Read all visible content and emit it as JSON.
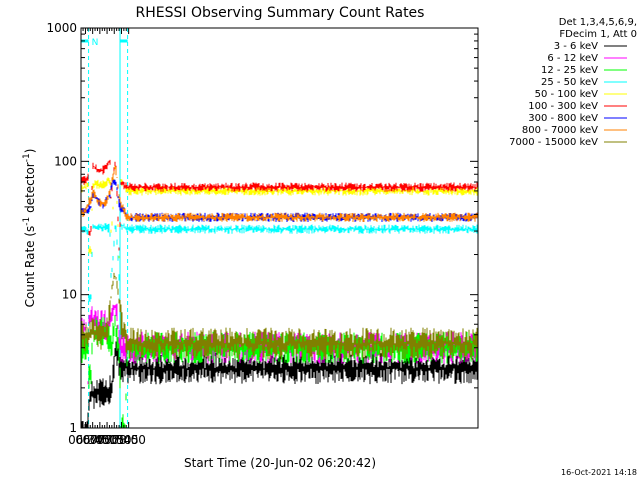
{
  "chart_data": {
    "type": "line",
    "title": "RHESSI Observing Summary Count Rates",
    "xlabel": "Start Time (20-Jun-02 06:20:42)",
    "ylabel_main": "Count Rate (s",
    "ylabel_sup1": "-1",
    "ylabel_mid": " detector",
    "ylabel_sup2": "-1",
    "ylabel_end": ")",
    "y_scale": "log",
    "ylim": [
      1,
      1000
    ],
    "xlim_min": [
      380.7,
      1208
    ],
    "x_unit": "minutes after 00:00",
    "x_ticks": [
      {
        "v": 390,
        "label": "06:30"
      },
      {
        "v": 405,
        "label": "06:45"
      },
      {
        "v": 420,
        "label": "07:00"
      },
      {
        "v": 435,
        "label": "07:15"
      },
      {
        "v": 450,
        "label": "07:30"
      },
      {
        "v": 465,
        "label": "07:45"
      },
      {
        "v": 480,
        "label": "08:00"
      }
    ],
    "y_ticks": [
      {
        "v": 1,
        "label": "1"
      },
      {
        "v": 10,
        "label": "10"
      },
      {
        "v": 100,
        "label": "100"
      },
      {
        "v": 1000,
        "label": "1000"
      }
    ],
    "legend_header": [
      "Det 1,3,4,5,6,9,",
      "FDecim 1, Att 0"
    ],
    "legend_placement": "right",
    "night_marker_label": "N",
    "night_intervals": [
      [
        380.7,
        396.5
      ],
      [
        462.0,
        477.8
      ]
    ],
    "eclipse_solid_edges": [
      380.7,
      462.0
    ],
    "eclipse_dashed_edges": [
      396.5,
      477.8
    ],
    "timestamp": "16-Oct-2021 14:18",
    "series": [
      {
        "name": "3 - 6 keV",
        "color": "#000000",
        "points": [
          [
            397,
            1
          ],
          [
            397.5,
            1.8
          ],
          [
            403,
            1.8
          ],
          [
            410,
            1.8
          ],
          [
            420,
            1.8
          ],
          [
            430,
            1.8
          ],
          [
            438,
            1.8
          ],
          [
            444,
            2.0
          ],
          [
            447,
            2.5
          ],
          [
            449,
            3.0
          ],
          [
            452,
            3.5
          ],
          [
            456,
            3.5
          ],
          [
            459,
            3.2
          ],
          [
            462,
            2.8
          ]
        ]
      },
      {
        "name": "6 - 12 keV",
        "color": "#ff00ff",
        "points": [
          [
            380.7,
            5.5
          ],
          [
            387,
            5.5
          ],
          [
            392,
            5.5
          ],
          [
            395,
            6.0
          ],
          [
            395.5,
            1
          ],
          [
            397,
            6.5
          ],
          [
            405,
            6.3
          ],
          [
            415,
            6.3
          ],
          [
            425,
            6.0
          ],
          [
            432,
            5.8
          ],
          [
            437,
            6.0
          ],
          [
            441,
            6.8
          ],
          [
            445,
            7.5
          ],
          [
            449,
            8.2
          ],
          [
            452,
            8.0
          ],
          [
            456,
            6.8
          ],
          [
            459,
            5.2
          ],
          [
            462,
            4.0
          ]
        ]
      },
      {
        "name": "12 - 25 keV",
        "color": "#00ff00",
        "points": [
          [
            380.7,
            4.0
          ],
          [
            390,
            4.0
          ],
          [
            395.5,
            4.0
          ],
          [
            396.5,
            2.6
          ],
          [
            403,
            2.6
          ],
          [
            404,
            5.8
          ],
          [
            412,
            5.2
          ],
          [
            420,
            5.2
          ],
          [
            428,
            5.2
          ],
          [
            434,
            5.0
          ],
          [
            438,
            4.8
          ],
          [
            441,
            4.6
          ],
          [
            442,
            3.8
          ],
          [
            446,
            4.2
          ],
          [
            449,
            5.5
          ],
          [
            451,
            6.5
          ],
          [
            454,
            5.5
          ],
          [
            457,
            4.5
          ],
          [
            460,
            3.5
          ],
          [
            462,
            2.5
          ],
          [
            463,
            1
          ],
          [
            474,
            1
          ],
          [
            475,
            3.5
          ],
          [
            477.8,
            4.0
          ]
        ]
      },
      {
        "name": "25 - 50 keV",
        "color": "#00ffff",
        "points": [
          [
            380.7,
            32
          ],
          [
            386,
            31
          ],
          [
            390,
            30
          ],
          [
            395.5,
            30
          ],
          [
            396.5,
            9.5
          ],
          [
            403,
            9.5
          ],
          [
            404,
            33
          ],
          [
            410,
            32
          ],
          [
            420,
            32
          ],
          [
            430,
            32
          ],
          [
            438,
            31.5
          ],
          [
            441,
            31.5
          ],
          [
            442,
            13
          ],
          [
            446,
            16
          ],
          [
            449,
            22
          ],
          [
            451,
            30
          ],
          [
            452,
            34
          ],
          [
            454,
            31
          ],
          [
            457,
            21
          ],
          [
            459,
            15
          ],
          [
            460.5,
            12
          ],
          [
            462,
            11
          ],
          [
            463,
            33
          ],
          [
            468,
            33
          ],
          [
            474,
            31
          ],
          [
            477.8,
            31
          ]
        ]
      },
      {
        "name": "50 - 100 keV",
        "color": "#ffff00",
        "points": [
          [
            380.7,
            63
          ],
          [
            386,
            63
          ],
          [
            390,
            64
          ],
          [
            395.5,
            65
          ],
          [
            396.5,
            21
          ],
          [
            403,
            22
          ],
          [
            404,
            65
          ],
          [
            410,
            68
          ],
          [
            420,
            67
          ],
          [
            430,
            68
          ],
          [
            438,
            72
          ],
          [
            441,
            78
          ],
          [
            442,
            28
          ],
          [
            445,
            33
          ],
          [
            448,
            48
          ],
          [
            450,
            80
          ],
          [
            452,
            95
          ],
          [
            454,
            80
          ],
          [
            456,
            45
          ],
          [
            458,
            32
          ],
          [
            459,
            21
          ],
          [
            461,
            17
          ],
          [
            463,
            70
          ],
          [
            468,
            68
          ],
          [
            474,
            63
          ],
          [
            477.8,
            60
          ]
        ]
      },
      {
        "name": "100 - 300 keV",
        "color": "#ff0000",
        "points": [
          [
            380.7,
            70
          ],
          [
            386,
            72
          ],
          [
            390,
            73
          ],
          [
            395.5,
            75
          ],
          [
            396.5,
            28
          ],
          [
            403,
            32
          ],
          [
            404,
            95
          ],
          [
            406,
            93
          ],
          [
            410,
            90
          ],
          [
            415,
            86
          ],
          [
            420,
            83
          ],
          [
            425,
            85
          ],
          [
            430,
            88
          ],
          [
            434,
            90
          ],
          [
            437,
            95
          ],
          [
            440,
            100
          ],
          [
            441,
            105
          ],
          [
            442,
            50
          ],
          [
            445,
            60
          ],
          [
            448,
            78
          ],
          [
            450,
            90
          ],
          [
            452,
            100
          ],
          [
            454,
            85
          ],
          [
            456,
            55
          ],
          [
            458,
            35
          ],
          [
            459,
            25
          ],
          [
            461,
            18
          ],
          [
            463,
            70
          ],
          [
            468,
            68
          ],
          [
            474,
            65
          ],
          [
            477.8,
            64
          ]
        ]
      },
      {
        "name": "300 - 800 keV",
        "color": "#0000ff",
        "points": [
          [
            380.7,
            45
          ],
          [
            384,
            43
          ],
          [
            388,
            42
          ],
          [
            392,
            43
          ],
          [
            395.5,
            44
          ],
          [
            397,
            45
          ],
          [
            400,
            45
          ],
          [
            403,
            46
          ],
          [
            404,
            58
          ],
          [
            408,
            56
          ],
          [
            413,
            52
          ],
          [
            418,
            49
          ],
          [
            423,
            48
          ],
          [
            428,
            48
          ],
          [
            433,
            50
          ],
          [
            438,
            54
          ],
          [
            441,
            57
          ],
          [
            443,
            62
          ],
          [
            446,
            67
          ],
          [
            449,
            71
          ],
          [
            452,
            72
          ],
          [
            455,
            66
          ],
          [
            458,
            54
          ],
          [
            461,
            46
          ],
          [
            465,
            43
          ],
          [
            470,
            42
          ],
          [
            474,
            40
          ],
          [
            477.8,
            38
          ]
        ]
      },
      {
        "name": "800 - 7000 keV",
        "color": "#ff8000",
        "points": [
          [
            380.7,
            43
          ],
          [
            384,
            41
          ],
          [
            388,
            41
          ],
          [
            392,
            44
          ],
          [
            395.5,
            47
          ],
          [
            397,
            50
          ],
          [
            400,
            51
          ],
          [
            403,
            52
          ],
          [
            404,
            58
          ],
          [
            408,
            57
          ],
          [
            413,
            53
          ],
          [
            418,
            50
          ],
          [
            423,
            48
          ],
          [
            428,
            48
          ],
          [
            433,
            50
          ],
          [
            438,
            55
          ],
          [
            441,
            60
          ],
          [
            443,
            66
          ],
          [
            446,
            74
          ],
          [
            449,
            83
          ],
          [
            452,
            90
          ],
          [
            455,
            80
          ],
          [
            458,
            64
          ],
          [
            461,
            52
          ],
          [
            465,
            46
          ],
          [
            470,
            43
          ],
          [
            474,
            40
          ],
          [
            477.8,
            38
          ]
        ]
      },
      {
        "name": "7000 - 15000 keV",
        "color": "#808000",
        "points": [
          [
            380.7,
            6.5
          ],
          [
            383,
            5.0
          ],
          [
            387,
            4.5
          ],
          [
            392,
            4.8
          ],
          [
            395.5,
            5.0
          ],
          [
            397,
            5.2
          ],
          [
            402,
            5.3
          ],
          [
            407,
            5.2
          ],
          [
            412,
            5.0
          ],
          [
            418,
            5.0
          ],
          [
            424,
            5.0
          ],
          [
            430,
            5.0
          ],
          [
            435,
            5.2
          ],
          [
            439,
            6.5
          ],
          [
            442,
            8.5
          ],
          [
            445,
            11
          ],
          [
            448,
            13
          ],
          [
            451,
            14
          ],
          [
            454,
            13
          ],
          [
            457,
            11
          ],
          [
            460,
            9
          ],
          [
            463,
            7
          ],
          [
            466,
            5.8
          ],
          [
            470,
            5.0
          ],
          [
            474,
            4.5
          ],
          [
            477.8,
            4.3
          ]
        ]
      }
    ]
  }
}
